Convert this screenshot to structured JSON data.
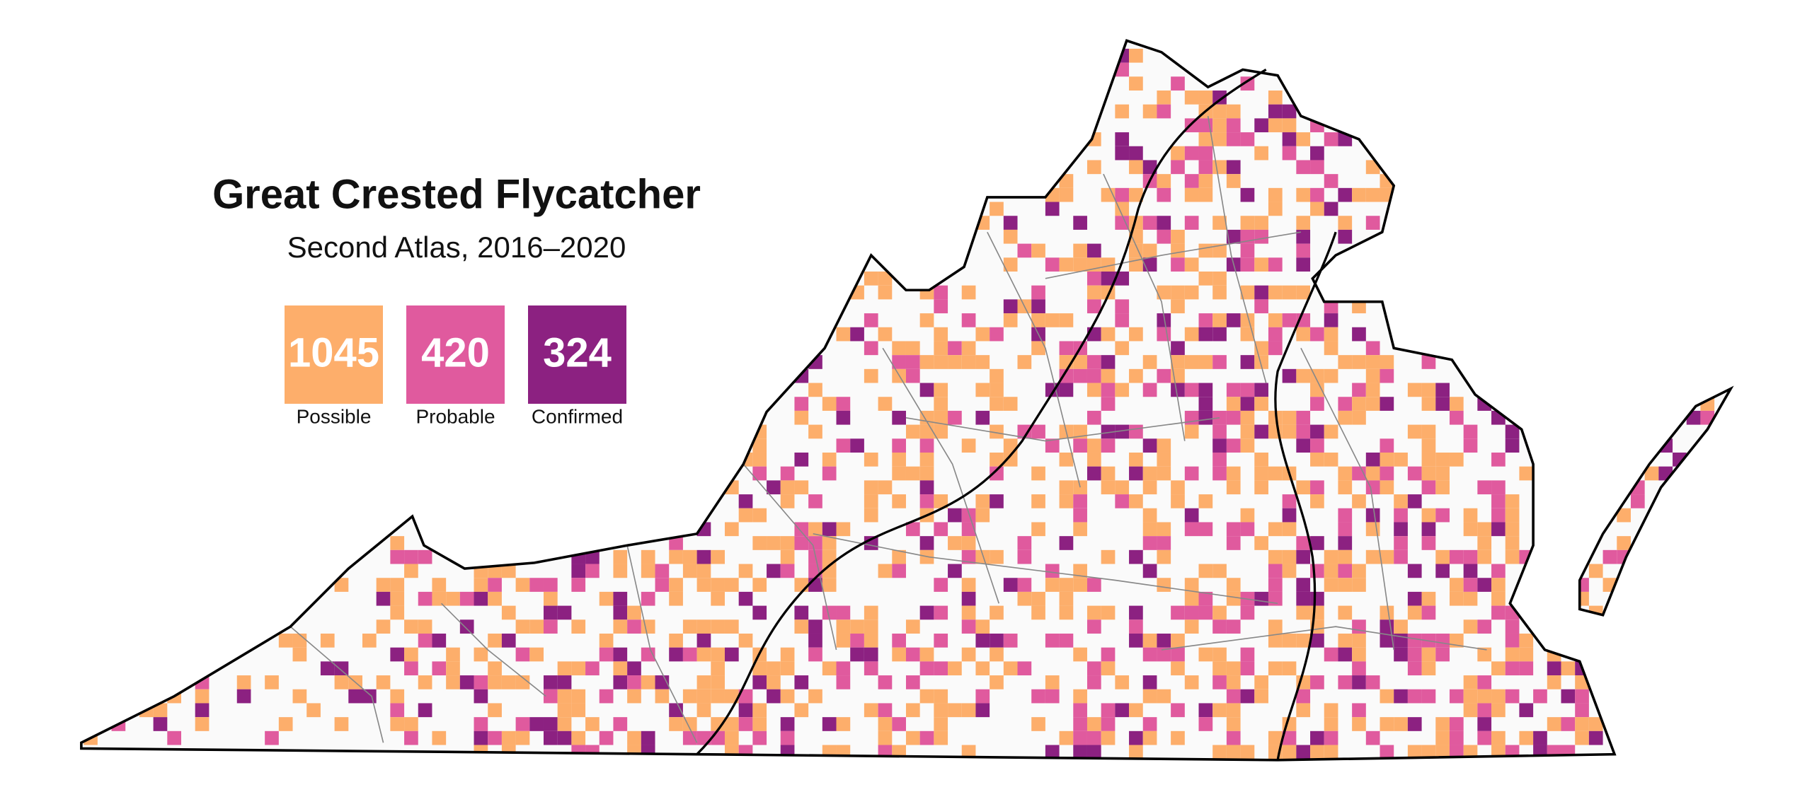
{
  "title": "Great Crested Flycatcher",
  "subtitle": "Second Atlas, 2016–2020",
  "legend": [
    {
      "count": 1045,
      "label": "Possible",
      "color": "#fdae6b"
    },
    {
      "count": 420,
      "label": "Probable",
      "color": "#e05a9e"
    },
    {
      "count": 324,
      "label": "Confirmed",
      "color": "#8c2181"
    }
  ]
}
